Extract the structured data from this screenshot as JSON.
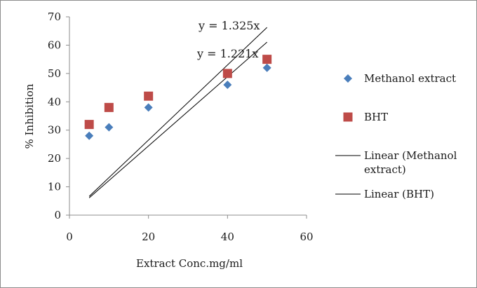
{
  "chart_data": {
    "type": "scatter",
    "xlabel": "Extract Conc.mg/ml",
    "ylabel": "% Inhibition",
    "xlim": [
      0,
      60
    ],
    "ylim": [
      0,
      70
    ],
    "x_ticks": [
      0,
      20,
      40,
      60
    ],
    "y_ticks": [
      0,
      10,
      20,
      30,
      40,
      50,
      60,
      70
    ],
    "grid": false,
    "legend_position": "right",
    "series": [
      {
        "name": "Methanol extract",
        "marker": "diamond",
        "color": "#4a7ebb",
        "x": [
          5,
          10,
          20,
          40,
          50
        ],
        "y": [
          28,
          31,
          38,
          46,
          52
        ]
      },
      {
        "name": "BHT",
        "marker": "square",
        "color": "#be4b48",
        "x": [
          5,
          10,
          20,
          40,
          50
        ],
        "y": [
          32,
          38,
          42,
          50,
          55
        ]
      }
    ],
    "trendlines": [
      {
        "name": "Linear (Methanol extract)",
        "equation": "y = 1.221x",
        "slope": 1.221,
        "x_range": [
          5,
          50
        ],
        "color": "#000000"
      },
      {
        "name": "Linear (BHT)",
        "equation": "y = 1.325x",
        "slope": 1.325,
        "x_range": [
          5,
          50
        ],
        "color": "#000000"
      }
    ]
  },
  "legend": {
    "items": [
      {
        "label_lines": [
          "Methanol extract"
        ],
        "symbol": "diamond",
        "color": "#4a7ebb"
      },
      {
        "label_lines": [
          "BHT"
        ],
        "symbol": "square",
        "color": "#be4b48"
      },
      {
        "label_lines": [
          "Linear (Methanol",
          "extract)"
        ],
        "symbol": "line",
        "color": "#000000"
      },
      {
        "label_lines": [
          "Linear (BHT)"
        ],
        "symbol": "line",
        "color": "#000000"
      }
    ]
  }
}
